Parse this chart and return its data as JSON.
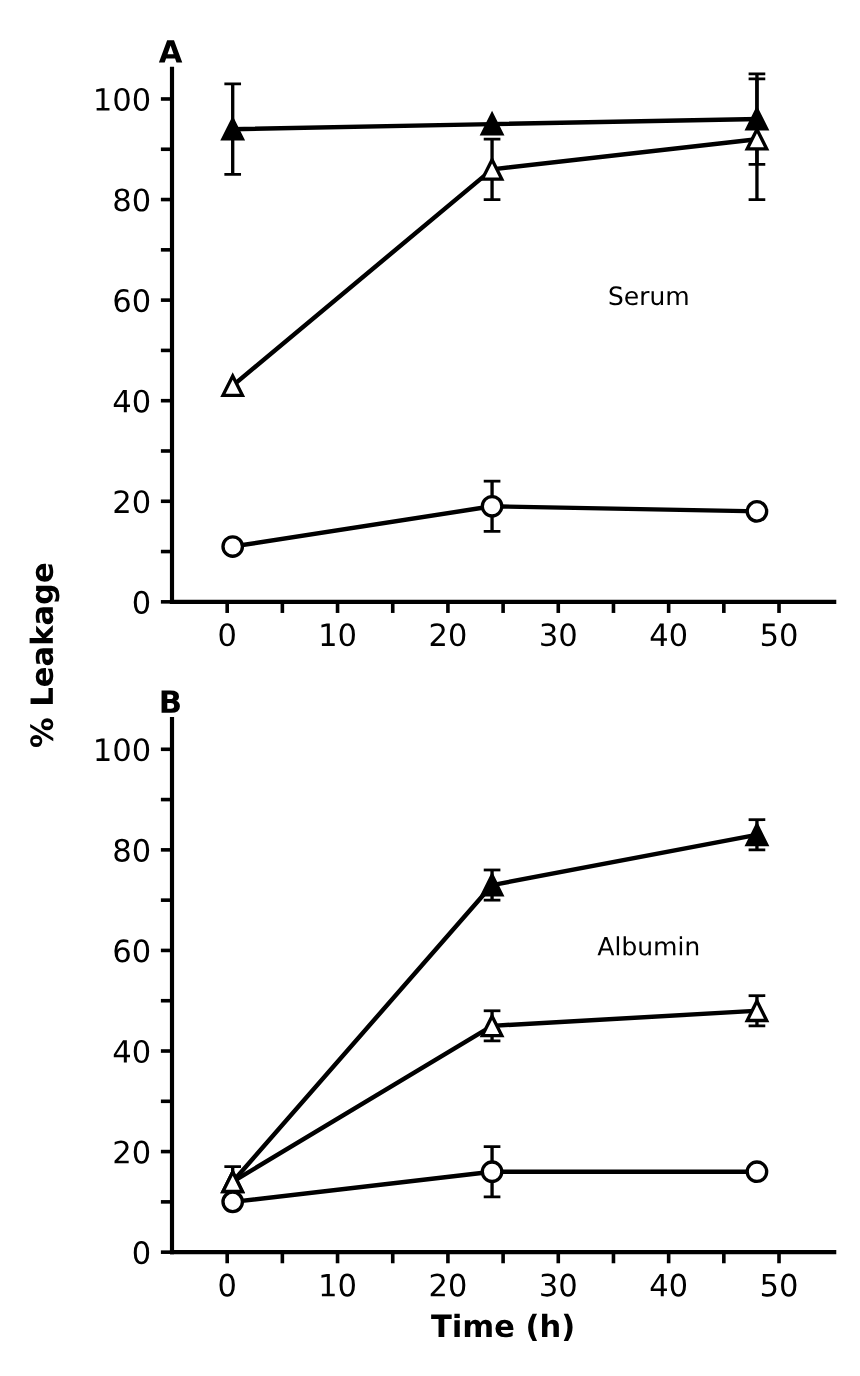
{
  "chart_data": [
    {
      "type": "line",
      "title": "A",
      "ylabel": "% Leakage",
      "annotations": [
        "Serum"
      ],
      "x": [
        0.5,
        24,
        48
      ],
      "xlim": [
        -5,
        55
      ],
      "ylim": [
        0,
        106
      ],
      "xticks": [
        0,
        {
          "value": 5,
          "label": null
        },
        10,
        {
          "value": 15,
          "label": null
        },
        20,
        {
          "value": 25,
          "label": null
        },
        30,
        {
          "value": 35,
          "label": null
        },
        40,
        {
          "value": 45,
          "label": null
        },
        50
      ],
      "yticks": [
        0,
        {
          "value": 10,
          "label": null
        },
        20,
        {
          "value": 30,
          "label": null
        },
        40,
        {
          "value": 50,
          "label": null
        },
        60,
        {
          "value": 70,
          "label": null
        },
        80,
        {
          "value": 90,
          "label": null
        },
        100
      ],
      "grid": false,
      "legend": false,
      "line_style": "solid",
      "series": [
        {
          "color": "#000000",
          "marker": "triangle",
          "values": [
            94,
            95,
            96
          ],
          "errors": [
            9,
            null,
            9
          ]
        },
        {
          "color": "#000000",
          "marker": "triangle",
          "values": [
            43,
            86,
            92
          ],
          "errors": [
            null,
            6,
            12
          ]
        },
        {
          "color": "#000000",
          "marker": "circle",
          "values": [
            11,
            19,
            18
          ],
          "errors": [
            null,
            5,
            null
          ]
        }
      ]
    },
    {
      "type": "line",
      "title": "B",
      "xlabel": "Time (h)",
      "annotations": [
        "Albumin"
      ],
      "x": [
        0.5,
        24,
        48
      ],
      "xlim": [
        -5,
        55
      ],
      "ylim": [
        0,
        106
      ],
      "xticks": [
        0,
        {
          "value": 5,
          "label": null
        },
        10,
        {
          "value": 15,
          "label": null
        },
        20,
        {
          "value": 25,
          "label": null
        },
        30,
        {
          "value": 35,
          "label": null
        },
        40,
        {
          "value": 45,
          "label": null
        },
        50
      ],
      "yticks": [
        0,
        {
          "value": 10,
          "label": null
        },
        20,
        {
          "value": 30,
          "label": null
        },
        40,
        {
          "value": 50,
          "label": null
        },
        60,
        {
          "value": 70,
          "label": null
        },
        80,
        {
          "value": 90,
          "label": null
        },
        100
      ],
      "grid": false,
      "legend": false,
      "line_style": "solid",
      "series": [
        {
          "color": "#000000",
          "marker": "triangle",
          "values": [
            14,
            73,
            83
          ],
          "errors": [
            3,
            3,
            3
          ]
        },
        {
          "color": "#000000",
          "marker": "triangle",
          "values": [
            14,
            45,
            48
          ],
          "errors": [
            null,
            3,
            3
          ]
        },
        {
          "color": "#000000",
          "marker": "circle",
          "values": [
            10,
            16,
            16
          ],
          "errors": [
            null,
            5,
            null
          ]
        }
      ]
    }
  ]
}
